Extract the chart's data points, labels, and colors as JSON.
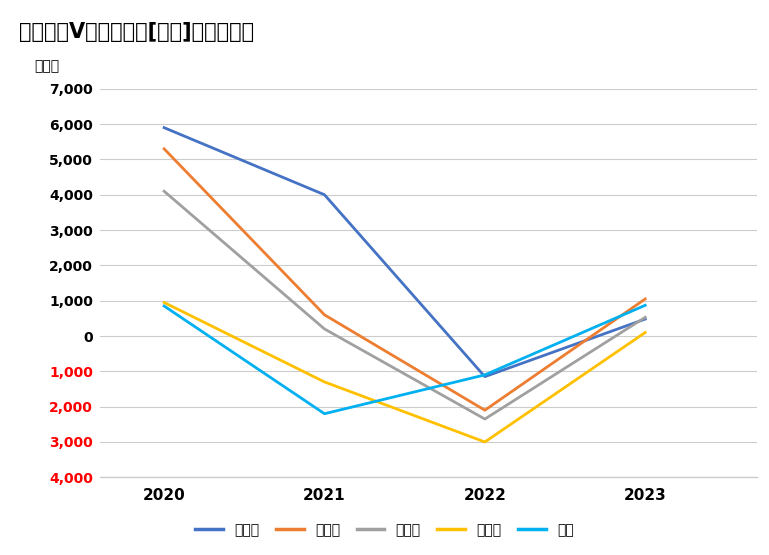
{
  "title": "グラフがV型の自治体[国内]・関東地方",
  "ylabel": "（人）",
  "years": [
    2020,
    2021,
    2022,
    2023
  ],
  "series": {
    "品川区": [
      5900,
      4000,
      -1150,
      480
    ],
    "大田区": [
      5300,
      600,
      -2100,
      1050
    ],
    "杉並区": [
      4100,
      200,
      -2350,
      530
    ],
    "目黒区": [
      950,
      -1300,
      -3000,
      100
    ],
    "港区": [
      850,
      -2200,
      -1100,
      870
    ]
  },
  "colors": {
    "品川区": "#4472C4",
    "大田区": "#ED7D31",
    "杉並区": "#A0A0A0",
    "目黒区": "#FFC000",
    "港区": "#00B0F0"
  },
  "ylim": [
    -4000,
    7000
  ],
  "yticks": [
    -4000,
    -3000,
    -2000,
    -1000,
    0,
    1000,
    2000,
    3000,
    4000,
    5000,
    6000,
    7000
  ],
  "ytick_labels_pos": [
    "7,000",
    "6,000",
    "5,000",
    "4,000",
    "3,000",
    "2,000",
    "1,000",
    "0"
  ],
  "ytick_labels_neg": [
    "1,000",
    "2,000",
    "3,000",
    "4,000"
  ],
  "title_bg_color": "#BDD7EE",
  "neg_label_color": "#FF0000",
  "background_color": "#FFFFFF",
  "grid_color": "#CCCCCC",
  "spine_color": "#CCCCCC"
}
